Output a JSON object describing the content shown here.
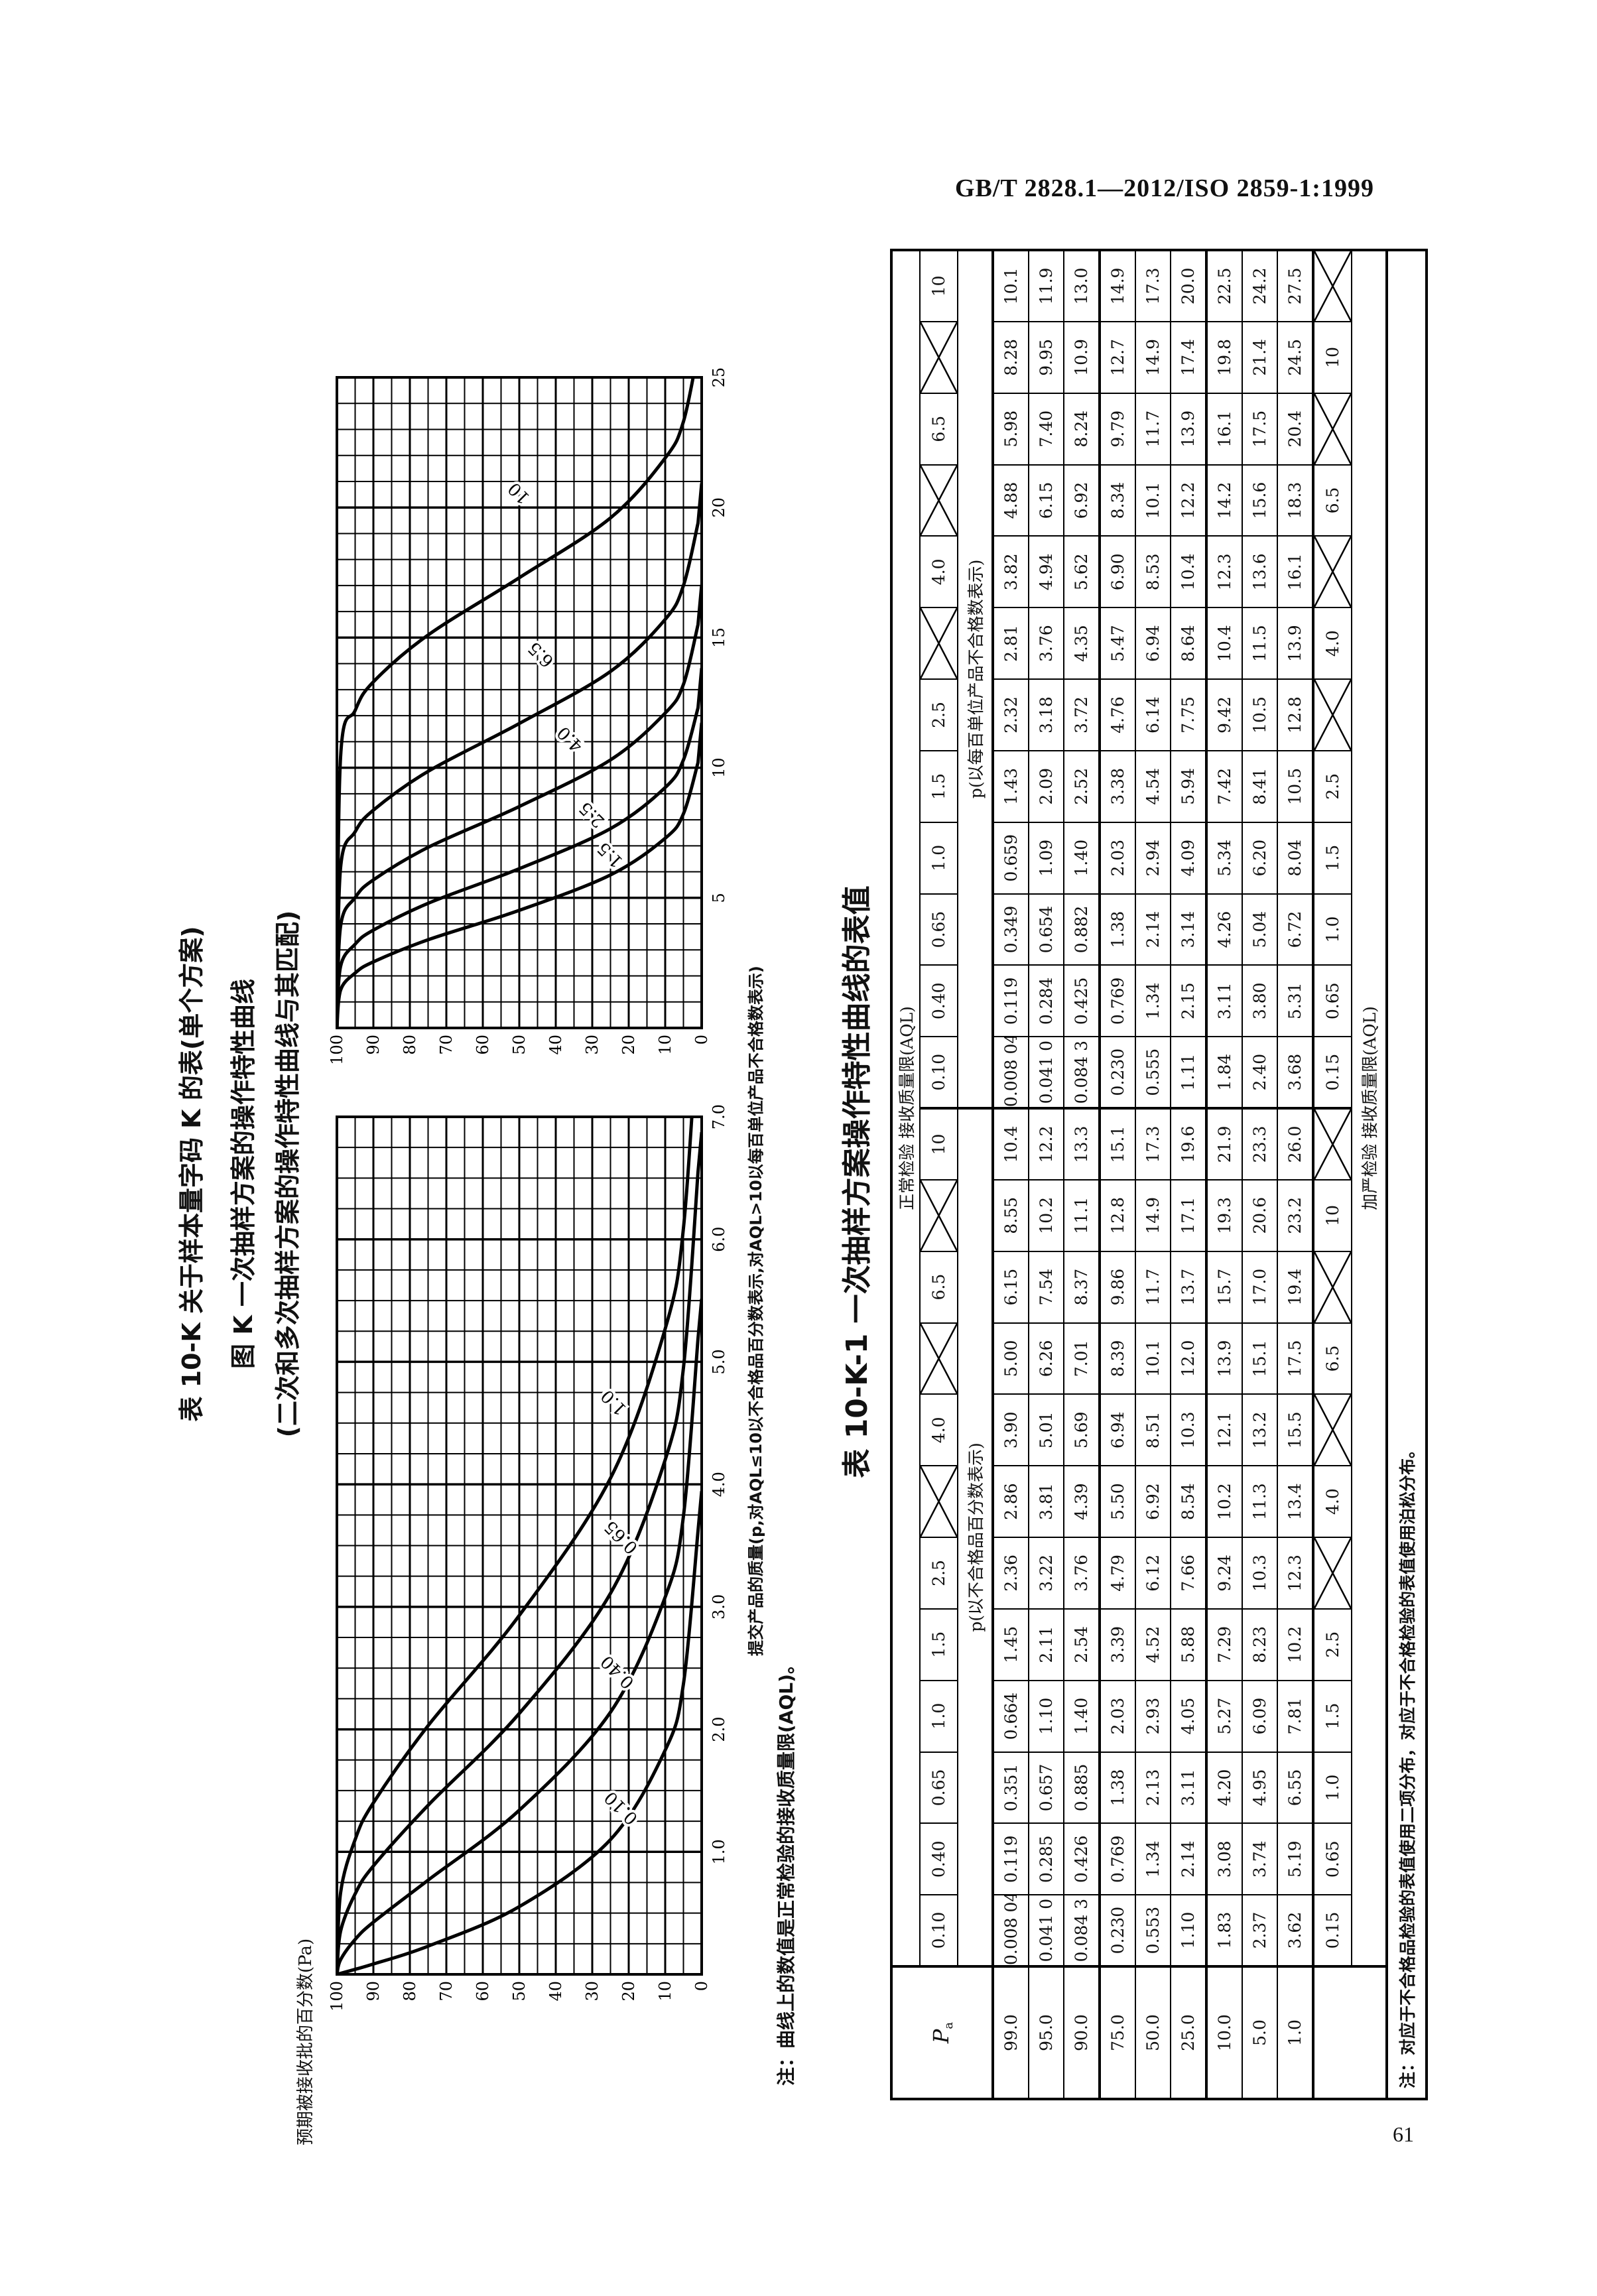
{
  "header": {
    "standard": "GB/T 2828.1—2012/ISO 2859-1:1999",
    "page_number": "61"
  },
  "titles": {
    "line1": "表 10-K  关于样本量字码 K 的表(单个方案)",
    "line2": "图 K  一次抽样方案的操作特性曲线",
    "line3": "(二次和多次抽样方案的操作特性曲线与其匹配)"
  },
  "figure": {
    "ylabel": "预期被接收批的百分数(Pa)",
    "xlabel": "提交产品的质量(p,对AQL≤10以不合格品百分数表示,对AQL>10以每百单位产品不合格数表示)",
    "note": "注：曲线上的数值是正常检验的接收质量限(AQL)。"
  },
  "chart_data": [
    {
      "type": "line",
      "xlim": [
        0,
        7.0
      ],
      "ylim": [
        0,
        100
      ],
      "grid": true,
      "x_ticks": [
        "1.0",
        "2.0",
        "3.0",
        "4.0",
        "5.0",
        "6.0",
        "7.0"
      ],
      "y_ticks": [
        "100",
        "90",
        "80",
        "70",
        "60",
        "50",
        "40",
        "30",
        "20",
        "10",
        "0"
      ],
      "pa_levels": [
        99,
        95,
        90,
        75,
        50,
        25,
        10,
        5,
        1
      ],
      "series": [
        {
          "name": "0.10",
          "p": [
            0.00804,
            0.041,
            0.0843,
            0.23,
            0.553,
            1.1,
            1.83,
            2.37,
            3.62
          ]
        },
        {
          "name": "0.40",
          "p": [
            0.119,
            0.285,
            0.426,
            0.769,
            1.34,
            2.14,
            3.08,
            3.74,
            5.19
          ]
        },
        {
          "name": "0.65",
          "p": [
            0.351,
            0.657,
            0.885,
            1.38,
            2.13,
            3.11,
            4.2,
            4.95,
            6.55
          ]
        },
        {
          "name": "1.0",
          "p": [
            0.664,
            1.1,
            1.4,
            2.03,
            2.93,
            4.05,
            5.27,
            6.09,
            7.81
          ]
        }
      ]
    },
    {
      "type": "line",
      "xlim": [
        0,
        25
      ],
      "ylim": [
        0,
        100
      ],
      "grid": true,
      "x_ticks": [
        "5",
        "10",
        "15",
        "20",
        "25"
      ],
      "y_ticks": [
        "100",
        "90",
        "80",
        "70",
        "60",
        "50",
        "40",
        "30",
        "20",
        "10",
        "0"
      ],
      "pa_levels": [
        99,
        95,
        90,
        75,
        50,
        25,
        10,
        5,
        1
      ],
      "series": [
        {
          "name": "1.5",
          "p": [
            1.45,
            2.11,
            2.54,
            3.39,
            4.52,
            5.88,
            7.29,
            8.23,
            10.2
          ]
        },
        {
          "name": "2.5",
          "p": [
            2.36,
            3.22,
            3.76,
            4.79,
            6.12,
            7.66,
            9.24,
            10.3,
            12.3
          ]
        },
        {
          "name": "4.0",
          "p": [
            3.9,
            5.01,
            5.69,
            6.94,
            8.51,
            10.3,
            12.1,
            13.2,
            15.5
          ]
        },
        {
          "name": "6.5",
          "p": [
            6.15,
            7.54,
            8.37,
            9.86,
            11.7,
            13.7,
            15.7,
            17.0,
            19.4
          ]
        },
        {
          "name": "10",
          "p": [
            10.4,
            12.2,
            13.3,
            15.1,
            17.3,
            19.6,
            21.9,
            23.3,
            26.0
          ]
        }
      ]
    }
  ],
  "table": {
    "title": "表 10-K-1  一次抽样方案操作特性曲线的表值",
    "pa_symbol": "P",
    "pa_sub": "a",
    "normal_header": "正常检验    接收质量限(AQL)",
    "normal_aql": [
      "0.10",
      "0.40",
      "0.65",
      "1.0",
      "1.5",
      "2.5",
      null,
      "4.0",
      null,
      "6.5",
      null,
      "10",
      "0.10",
      "0.40",
      "0.65",
      "1.0",
      "1.5",
      "2.5",
      null,
      "4.0",
      null,
      "6.5",
      null,
      "10"
    ],
    "unit_left": "p(以不合格品百分数表示)",
    "unit_right": "p(以每百单位产品不合格数表示)",
    "rows": [
      {
        "pa": "99.0",
        "values": [
          "0.008 04",
          "0.119",
          "0.351",
          "0.664",
          "1.45",
          "2.36",
          "2.86",
          "3.90",
          "5.00",
          "6.15",
          "8.55",
          "10.4",
          "0.008 04",
          "0.119",
          "0.349",
          "0.659",
          "1.43",
          "2.32",
          "2.81",
          "3.82",
          "4.88",
          "5.98",
          "8.28",
          "10.1"
        ]
      },
      {
        "pa": "95.0",
        "values": [
          "0.041 0",
          "0.285",
          "0.657",
          "1.10",
          "2.11",
          "3.22",
          "3.81",
          "5.01",
          "6.26",
          "7.54",
          "10.2",
          "12.2",
          "0.041 0",
          "0.284",
          "0.654",
          "1.09",
          "2.09",
          "3.18",
          "3.76",
          "4.94",
          "6.15",
          "7.40",
          "9.95",
          "11.9"
        ]
      },
      {
        "pa": "90.0",
        "values": [
          "0.084 3",
          "0.426",
          "0.885",
          "1.40",
          "2.54",
          "3.76",
          "4.39",
          "5.69",
          "7.01",
          "8.37",
          "11.1",
          "13.3",
          "0.084 3",
          "0.425",
          "0.882",
          "1.40",
          "2.52",
          "3.72",
          "4.35",
          "5.62",
          "6.92",
          "8.24",
          "10.9",
          "13.0"
        ]
      },
      {
        "pa": "75.0",
        "values": [
          "0.230",
          "0.769",
          "1.38",
          "2.03",
          "3.39",
          "4.79",
          "5.50",
          "6.94",
          "8.39",
          "9.86",
          "12.8",
          "15.1",
          "0.230",
          "0.769",
          "1.38",
          "2.03",
          "3.38",
          "4.76",
          "5.47",
          "6.90",
          "8.34",
          "9.79",
          "12.7",
          "14.9"
        ]
      },
      {
        "pa": "50.0",
        "values": [
          "0.553",
          "1.34",
          "2.13",
          "2.93",
          "4.52",
          "6.12",
          "6.92",
          "8.51",
          "10.1",
          "11.7",
          "14.9",
          "17.3",
          "0.555",
          "1.34",
          "2.14",
          "2.94",
          "4.54",
          "6.14",
          "6.94",
          "8.53",
          "10.1",
          "11.7",
          "14.9",
          "17.3"
        ]
      },
      {
        "pa": "25.0",
        "values": [
          "1.10",
          "2.14",
          "3.11",
          "4.05",
          "5.88",
          "7.66",
          "8.54",
          "10.3",
          "12.0",
          "13.7",
          "17.1",
          "19.6",
          "1.11",
          "2.15",
          "3.14",
          "4.09",
          "5.94",
          "7.75",
          "8.64",
          "10.4",
          "12.2",
          "13.9",
          "17.4",
          "20.0"
        ]
      },
      {
        "pa": "10.0",
        "values": [
          "1.83",
          "3.08",
          "4.20",
          "5.27",
          "7.29",
          "9.24",
          "10.2",
          "12.1",
          "13.9",
          "15.7",
          "19.3",
          "21.9",
          "1.84",
          "3.11",
          "4.26",
          "5.34",
          "7.42",
          "9.42",
          "10.4",
          "12.3",
          "14.2",
          "16.1",
          "19.8",
          "22.5"
        ]
      },
      {
        "pa": "5.0",
        "values": [
          "2.37",
          "3.74",
          "4.95",
          "6.09",
          "8.23",
          "10.3",
          "11.3",
          "13.2",
          "15.1",
          "17.0",
          "20.6",
          "23.3",
          "2.40",
          "3.80",
          "5.04",
          "6.20",
          "8.41",
          "10.5",
          "11.5",
          "13.6",
          "15.6",
          "17.5",
          "21.4",
          "24.2"
        ]
      },
      {
        "pa": "1.0",
        "values": [
          "3.62",
          "5.19",
          "6.55",
          "7.81",
          "10.2",
          "12.3",
          "13.4",
          "15.5",
          "17.5",
          "19.4",
          "23.2",
          "26.0",
          "3.68",
          "5.31",
          "6.72",
          "8.04",
          "10.5",
          "12.8",
          "13.9",
          "16.1",
          "18.3",
          "20.4",
          "24.5",
          "27.5"
        ]
      }
    ],
    "tightened_aql": [
      "0.15",
      "0.65",
      "1.0",
      "1.5",
      "2.5",
      null,
      "4.0",
      null,
      "6.5",
      null,
      "10",
      null,
      "0.15",
      "0.65",
      "1.0",
      "1.5",
      "2.5",
      null,
      "4.0",
      null,
      "6.5",
      null,
      "10",
      null
    ],
    "tightened_header": "加严检验    接收质量限(AQL)",
    "note": "注：对应于不合格品检验的表值使用二项分布，对应于不合格检验的表值使用泊松分布。"
  }
}
